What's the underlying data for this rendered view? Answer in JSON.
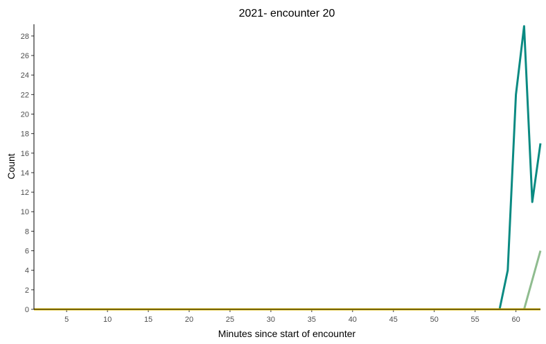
{
  "chart_data": {
    "type": "line",
    "title": "2021- encounter 20",
    "xlabel": "Minutes since start of encounter",
    "ylabel": "Count",
    "xlim": [
      1,
      63
    ],
    "ylim": [
      0,
      29.2
    ],
    "xticks": [
      5,
      10,
      15,
      20,
      25,
      30,
      35,
      40,
      45,
      50,
      55,
      60
    ],
    "yticks": [
      0,
      2,
      4,
      6,
      8,
      10,
      12,
      14,
      16,
      18,
      20,
      22,
      24,
      26,
      28
    ],
    "grid": false,
    "legend": "none",
    "series": [
      {
        "color": "#0a8a82",
        "points": [
          [
            1,
            0
          ],
          [
            58,
            0
          ],
          [
            59,
            4
          ],
          [
            60,
            22
          ],
          [
            61,
            29
          ],
          [
            62,
            11
          ],
          [
            63,
            17
          ]
        ]
      },
      {
        "color": "#8fbc8f",
        "points": [
          [
            1,
            0
          ],
          [
            61,
            0
          ],
          [
            63,
            6
          ]
        ]
      },
      {
        "color": "#e8c30a",
        "points": [
          [
            1,
            0
          ],
          [
            63,
            0
          ]
        ]
      }
    ]
  }
}
